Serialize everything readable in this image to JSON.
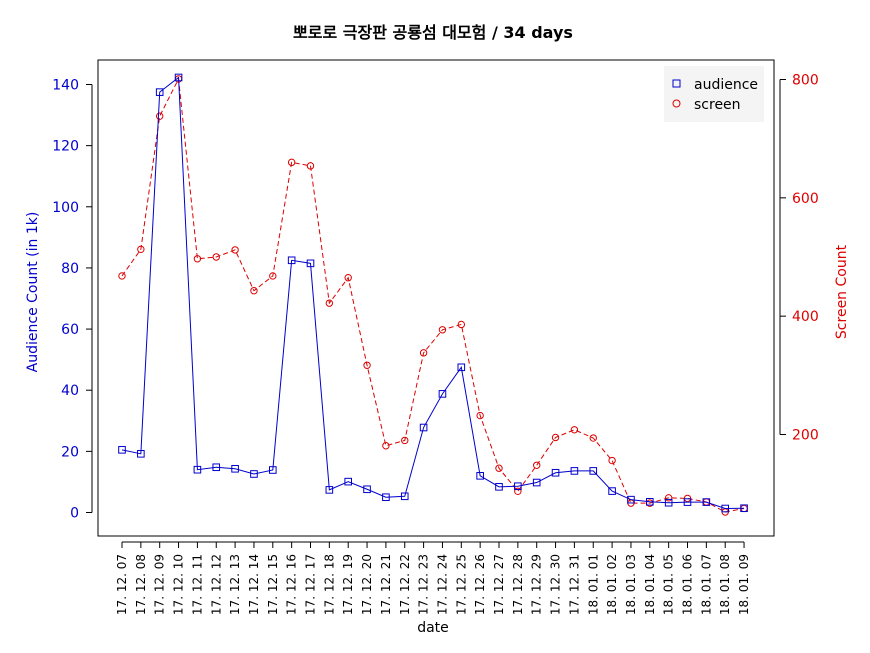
{
  "chart_data": {
    "type": "line",
    "title": "뽀로로 극장판 공룡섬 대모험",
    "title_suffix": " / 34 days",
    "xlabel": "date",
    "ylabel_left": "Audience Count (in 1k)",
    "ylabel_right": "Screen Count",
    "ylim_left": [
      0,
      145
    ],
    "ylim_right": [
      60,
      815
    ],
    "yticks_left": [
      0,
      20,
      40,
      60,
      80,
      100,
      120,
      140
    ],
    "yticks_right": [
      200,
      400,
      600,
      800
    ],
    "legend_position": "top-right",
    "categories": [
      "17. 12. 07",
      "17. 12. 08",
      "17. 12. 09",
      "17. 12. 10",
      "17. 12. 11",
      "17. 12. 12",
      "17. 12. 13",
      "17. 12. 14",
      "17. 12. 15",
      "17. 12. 16",
      "17. 12. 17",
      "17. 12. 18",
      "17. 12. 19",
      "17. 12. 20",
      "17. 12. 21",
      "17. 12. 22",
      "17. 12. 23",
      "17. 12. 24",
      "17. 12. 25",
      "17. 12. 26",
      "17. 12. 27",
      "17. 12. 28",
      "17. 12. 29",
      "17. 12. 30",
      "17. 12. 31",
      "18. 01. 01",
      "18. 01. 02",
      "18. 01. 03",
      "18. 01. 04",
      "18. 01. 05",
      "18. 01. 06",
      "18. 01. 07",
      "18. 01. 08",
      "18. 01. 09"
    ],
    "series": [
      {
        "name": "audience",
        "axis": "left",
        "color": "#0000cc",
        "marker": "square",
        "line": "solid",
        "values": [
          20.5,
          19.2,
          137.5,
          142.3,
          14.0,
          14.8,
          14.3,
          12.6,
          13.9,
          82.5,
          81.5,
          7.4,
          10.1,
          7.6,
          5.0,
          5.3,
          27.8,
          38.8,
          47.5,
          12.0,
          8.4,
          8.6,
          9.8,
          13.0,
          13.6,
          13.6,
          7.0,
          4.2,
          3.5,
          3.2,
          3.4,
          3.4,
          1.3,
          1.4
        ]
      },
      {
        "name": "screen",
        "axis": "right",
        "color": "#dd0000",
        "marker": "circle",
        "line": "dashed",
        "values": [
          468,
          513,
          738,
          801,
          497,
          500,
          512,
          443,
          468,
          660,
          654,
          422,
          465,
          317,
          181,
          190,
          338,
          377,
          386,
          232,
          143,
          104,
          148,
          195,
          208,
          194,
          156,
          84,
          84,
          93,
          92,
          86,
          69,
          75
        ]
      }
    ]
  }
}
